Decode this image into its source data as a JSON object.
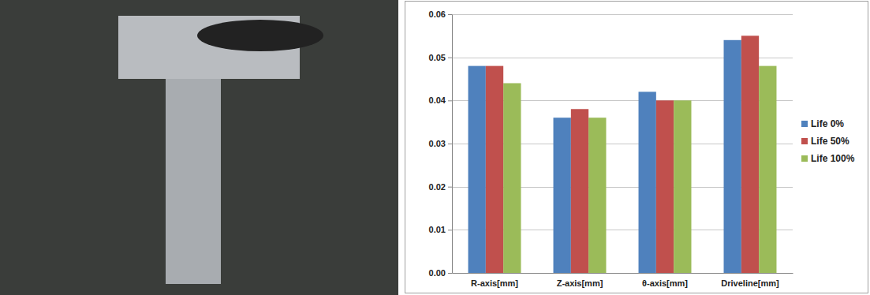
{
  "chart_data": {
    "type": "bar",
    "categories": [
      "R-axis[mm]",
      "Z-axis[mm]",
      "θ-axis[mm]",
      "Driveline[mm]"
    ],
    "series": [
      {
        "name": "Life 0%",
        "color": "#4f81bd",
        "values": [
          0.048,
          0.036,
          0.042,
          0.054
        ]
      },
      {
        "name": "Life 50%",
        "color": "#c0504d",
        "values": [
          0.048,
          0.038,
          0.04,
          0.055
        ]
      },
      {
        "name": "Life 100%",
        "color": "#9bbb59",
        "values": [
          0.044,
          0.036,
          0.04,
          0.048
        ]
      }
    ],
    "ylim": [
      0,
      0.06
    ],
    "yticks": [
      {
        "value": 0,
        "label": "0.00"
      },
      {
        "value": 0.01,
        "label": "0.01"
      },
      {
        "value": 0.02,
        "label": "0.02"
      },
      {
        "value": 0.03,
        "label": "0.03"
      },
      {
        "value": 0.04,
        "label": "0.04"
      },
      {
        "value": 0.05,
        "label": "0.05"
      },
      {
        "value": 0.06,
        "label": "0.06"
      }
    ],
    "grid": true,
    "legend": "right"
  }
}
